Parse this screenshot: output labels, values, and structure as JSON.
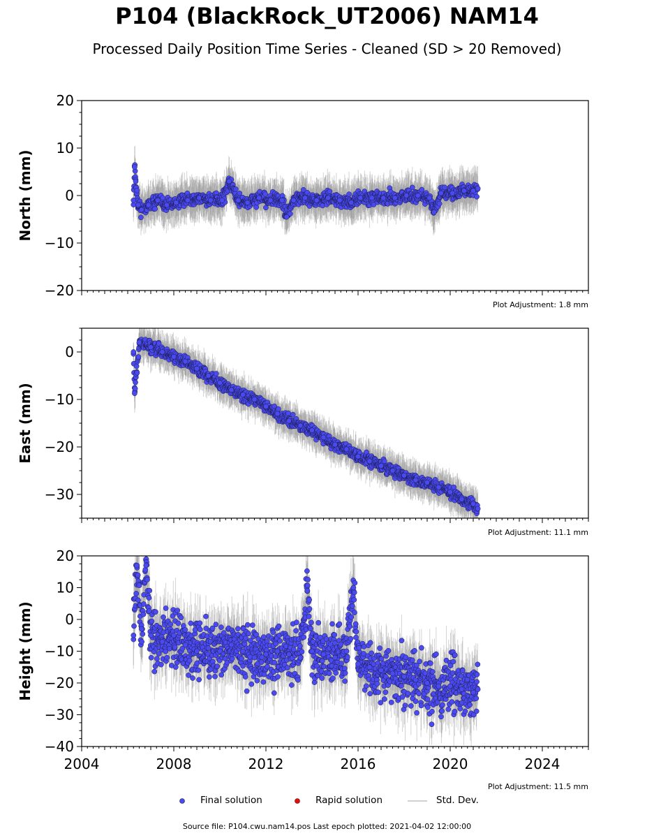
{
  "title": "P104 (BlackRock_UT2006) NAM14",
  "subtitle": "Processed Daily Position Time Series - Cleaned (SD > 20 Removed)",
  "legend": {
    "final": "Final solution",
    "rapid": "Rapid solution",
    "std": "Std. Dev."
  },
  "source_text": "Source file: P104.cwu.nam14.pos  Last epoch plotted: 2021-04-02 12:00:00",
  "colors": {
    "final_fill": "#4a4af0",
    "final_edge": "#1a1a4a",
    "rapid": "#e01010",
    "std": "#808080"
  },
  "chart_data": [
    {
      "type": "scatter",
      "ylabel": "North (mm)",
      "ylim": [
        -20,
        20
      ],
      "yticks": [
        -20,
        -10,
        0,
        10,
        20
      ],
      "yticklabels": [
        "−20",
        "−10",
        "0",
        "10",
        "20"
      ],
      "xlim": [
        2004,
        2026
      ],
      "adjustment": "Plot Adjustment: 1.8 mm",
      "series": [
        {
          "name": "Final solution",
          "x": [
            2006.25,
            2006.3,
            2006.35,
            2006.45,
            2006.6,
            2006.9,
            2007.3,
            2007.7,
            2008.1,
            2008.6,
            2009.1,
            2009.6,
            2010.1,
            2010.4,
            2010.8,
            2011.2,
            2011.7,
            2012.2,
            2012.7,
            2012.9,
            2013.2,
            2013.7,
            2014.2,
            2014.7,
            2015.2,
            2015.7,
            2016.1,
            2016.6,
            2017.1,
            2017.6,
            2018.1,
            2018.6,
            2019.1,
            2019.3,
            2019.6,
            2020.1,
            2020.6,
            2021.0,
            2021.2
          ],
          "y": [
            -1,
            6,
            3,
            -2,
            -3,
            -2,
            -1,
            -2,
            -1.5,
            -1,
            -0.5,
            -1,
            -1,
            3,
            -1,
            -1.5,
            -0.5,
            -1,
            -1,
            -4.5,
            -1,
            -0.5,
            -1,
            -0.5,
            -1,
            -1.5,
            -0.5,
            -0.5,
            -0.5,
            -0.5,
            0,
            0,
            -0.5,
            -3.5,
            0.5,
            0.5,
            1,
            1,
            1.5
          ]
        }
      ]
    },
    {
      "type": "scatter",
      "ylabel": "East (mm)",
      "ylim": [
        -35,
        5
      ],
      "yticks": [
        -30,
        -20,
        -10,
        0
      ],
      "yticklabels": [
        "−30",
        "−20",
        "−10",
        "0"
      ],
      "xlim": [
        2004,
        2026
      ],
      "adjustment": "Plot Adjustment: 11.1 mm",
      "series": [
        {
          "name": "Final solution",
          "x": [
            2006.25,
            2006.3,
            2006.5,
            2007.0,
            2007.5,
            2008.0,
            2008.5,
            2009.0,
            2009.5,
            2010.0,
            2010.5,
            2011.0,
            2011.5,
            2012.0,
            2012.5,
            2013.0,
            2013.5,
            2014.0,
            2014.5,
            2015.0,
            2015.5,
            2016.0,
            2016.5,
            2017.0,
            2017.5,
            2018.0,
            2018.5,
            2019.0,
            2019.5,
            2020.0,
            2020.5,
            2021.0,
            2021.2
          ],
          "y": [
            0,
            -8.7,
            2,
            1,
            0,
            -1,
            -2,
            -3.5,
            -5,
            -6.5,
            -8,
            -9,
            -10,
            -11.5,
            -13,
            -14.5,
            -15.5,
            -16.5,
            -18,
            -19.5,
            -20.5,
            -22,
            -23,
            -24,
            -25,
            -26,
            -27,
            -27.5,
            -28.5,
            -29.5,
            -31,
            -32,
            -33
          ]
        }
      ]
    },
    {
      "type": "scatter",
      "ylabel": "Height (mm)",
      "ylim": [
        -40,
        20
      ],
      "yticks": [
        -40,
        -30,
        -20,
        -10,
        0,
        10,
        20
      ],
      "yticklabels": [
        "−40",
        "−30",
        "−20",
        "−10",
        "0",
        "10",
        "20"
      ],
      "xlim": [
        2004,
        2026
      ],
      "xticks": [
        2004,
        2008,
        2012,
        2016,
        2020,
        2024
      ],
      "xticklabels": [
        "2004",
        "2008",
        "2012",
        "2016",
        "2020",
        "2024"
      ],
      "adjustment": "Plot Adjustment: 11.5 mm",
      "series": [
        {
          "name": "Final solution",
          "x": [
            2006.25,
            2006.4,
            2006.6,
            2006.8,
            2007.0,
            2007.5,
            2008.0,
            2008.5,
            2009.0,
            2009.5,
            2010.0,
            2010.5,
            2011.0,
            2011.5,
            2012.0,
            2012.5,
            2013.0,
            2013.5,
            2013.8,
            2014.0,
            2014.5,
            2015.0,
            2015.5,
            2015.8,
            2016.0,
            2016.5,
            2017.0,
            2017.5,
            2018.0,
            2018.5,
            2019.0,
            2019.5,
            2020.0,
            2020.5,
            2021.0,
            2021.2
          ],
          "y": [
            -5,
            17,
            -3,
            17,
            -5,
            -7,
            -5,
            -8,
            -10,
            -9,
            -10,
            -8,
            -10,
            -12,
            -11,
            -10,
            -11,
            -12,
            9,
            -10,
            -11,
            -12,
            -10,
            10,
            -14,
            -15,
            -16,
            -17,
            -18,
            -19,
            -20,
            -21,
            -21,
            -22,
            -23,
            -22
          ]
        }
      ]
    }
  ]
}
